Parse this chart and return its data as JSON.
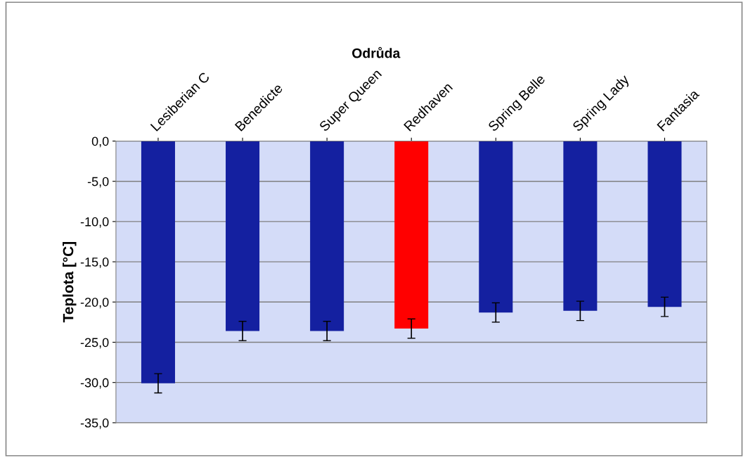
{
  "chart_data": {
    "type": "bar",
    "xlabel": "Odrůda",
    "ylabel": "Teplota [°C]",
    "categories": [
      "Lesiberian C",
      "Benedicte",
      "Super Queen",
      "Redhaven",
      "Spring Belle",
      "Spring Lady",
      "Fantasia"
    ],
    "values": [
      -30.1,
      -23.6,
      -23.6,
      -23.3,
      -21.3,
      -21.1,
      -20.6
    ],
    "errors": [
      1.2,
      1.2,
      1.2,
      1.2,
      1.2,
      1.2,
      1.2
    ],
    "colors": [
      "#1420a0",
      "#1420a0",
      "#1420a0",
      "#ff0000",
      "#1420a0",
      "#1420a0",
      "#1420a0"
    ],
    "ylim": [
      -35,
      0
    ],
    "yticks": [
      {
        "value": -35,
        "label": "-35,0"
      },
      {
        "value": -30,
        "label": "-30,0"
      },
      {
        "value": -25,
        "label": "-25,0"
      },
      {
        "value": -20,
        "label": "-20,0"
      },
      {
        "value": -15,
        "label": "-15,0"
      },
      {
        "value": -10,
        "label": "-10,0"
      },
      {
        "value": -5,
        "label": "-5,0"
      },
      {
        "value": 0,
        "label": "0,0"
      }
    ],
    "grid": "y",
    "legend": false
  }
}
